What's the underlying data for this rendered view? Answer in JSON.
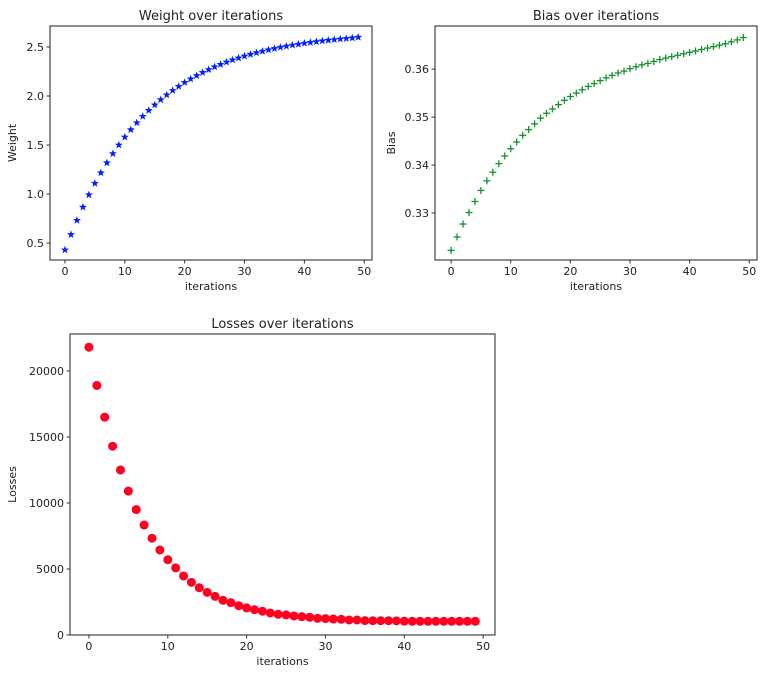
{
  "chart_data": [
    {
      "type": "scatter",
      "title": "Weight over iterations",
      "xlabel": "iterations",
      "ylabel": "Weight",
      "marker": "star",
      "color": "#0022ff",
      "xlim": [
        -2.5,
        51.3
      ],
      "ylim": [
        0.327,
        2.714
      ],
      "xticks": [
        {
          "v": 0,
          "t": "0"
        },
        {
          "v": 10,
          "t": "10"
        },
        {
          "v": 20,
          "t": "20"
        },
        {
          "v": 30,
          "t": "30"
        },
        {
          "v": 40,
          "t": "40"
        },
        {
          "v": 50,
          "t": "50"
        }
      ],
      "yticks": [
        {
          "v": 0.5,
          "t": "0.5"
        },
        {
          "v": 1.0,
          "t": "1.0"
        },
        {
          "v": 1.5,
          "t": "1.5"
        },
        {
          "v": 2.0,
          "t": "2.0"
        },
        {
          "v": 2.5,
          "t": "2.5"
        }
      ],
      "y": [
        0.43,
        0.586,
        0.731,
        0.866,
        0.992,
        1.109,
        1.217,
        1.318,
        1.412,
        1.5,
        1.581,
        1.656,
        1.727,
        1.792,
        1.853,
        1.909,
        1.962,
        2.011,
        2.056,
        2.098,
        2.138,
        2.174,
        2.208,
        2.24,
        2.269,
        2.297,
        2.322,
        2.346,
        2.368,
        2.388,
        2.407,
        2.425,
        2.441,
        2.457,
        2.471,
        2.484,
        2.497,
        2.508,
        2.519,
        2.528,
        2.538,
        2.546,
        2.554,
        2.562,
        2.569,
        2.575,
        2.581,
        2.586,
        2.592,
        2.6
      ]
    },
    {
      "type": "scatter",
      "title": "Bias over iterations",
      "xlabel": "iterations",
      "ylabel": "Bias",
      "marker": "plus",
      "color": "#13912e",
      "xlim": [
        -2.7,
        51.3
      ],
      "ylim": [
        0.3202,
        0.369
      ],
      "xticks": [
        {
          "v": 0,
          "t": "0"
        },
        {
          "v": 10,
          "t": "10"
        },
        {
          "v": 20,
          "t": "20"
        },
        {
          "v": 30,
          "t": "30"
        },
        {
          "v": 40,
          "t": "40"
        },
        {
          "v": 50,
          "t": "50"
        }
      ],
      "yticks": [
        {
          "v": 0.33,
          "t": "0.33"
        },
        {
          "v": 0.34,
          "t": "0.34"
        },
        {
          "v": 0.35,
          "t": "0.35"
        },
        {
          "v": 0.36,
          "t": "0.36"
        }
      ],
      "y": [
        0.3222,
        0.325,
        0.3277,
        0.3301,
        0.3324,
        0.3347,
        0.3367,
        0.3385,
        0.3403,
        0.3419,
        0.3434,
        0.3448,
        0.3462,
        0.3474,
        0.3486,
        0.3498,
        0.3508,
        0.3517,
        0.3526,
        0.3535,
        0.3543,
        0.355,
        0.3557,
        0.3564,
        0.357,
        0.3576,
        0.3582,
        0.3587,
        0.3592,
        0.3596,
        0.3601,
        0.3605,
        0.3609,
        0.3612,
        0.3616,
        0.362,
        0.3623,
        0.3626,
        0.3629,
        0.3632,
        0.3635,
        0.3638,
        0.3641,
        0.3644,
        0.3647,
        0.365,
        0.3653,
        0.3657,
        0.3661,
        0.3666
      ]
    },
    {
      "type": "scatter",
      "title": "Losses over iterations",
      "xlabel": "iterations",
      "ylabel": "Losses",
      "marker": "circle",
      "color": "#ff0022",
      "xlim": [
        -2.4,
        51.5
      ],
      "ylim": [
        0,
        22800
      ],
      "xticks": [
        {
          "v": 0,
          "t": "0"
        },
        {
          "v": 10,
          "t": "10"
        },
        {
          "v": 20,
          "t": "20"
        },
        {
          "v": 30,
          "t": "30"
        },
        {
          "v": 40,
          "t": "40"
        },
        {
          "v": 50,
          "t": "50"
        }
      ],
      "yticks": [
        {
          "v": 0,
          "t": "0"
        },
        {
          "v": 5000,
          "t": "5000"
        },
        {
          "v": 10000,
          "t": "10000"
        },
        {
          "v": 15000,
          "t": "15000"
        },
        {
          "v": 20000,
          "t": "20000"
        }
      ],
      "y": [
        21800,
        18900,
        16500,
        14300,
        12500,
        10900,
        9500,
        8330,
        7330,
        6440,
        5700,
        5080,
        4470,
        3990,
        3580,
        3230,
        2930,
        2630,
        2450,
        2220,
        2050,
        1920,
        1800,
        1670,
        1570,
        1520,
        1440,
        1390,
        1340,
        1260,
        1240,
        1210,
        1190,
        1140,
        1140,
        1090,
        1080,
        1080,
        1080,
        1070,
        1050,
        1040,
        1040,
        1040,
        1040,
        1040,
        1040,
        1040,
        1040,
        1040
      ]
    }
  ]
}
